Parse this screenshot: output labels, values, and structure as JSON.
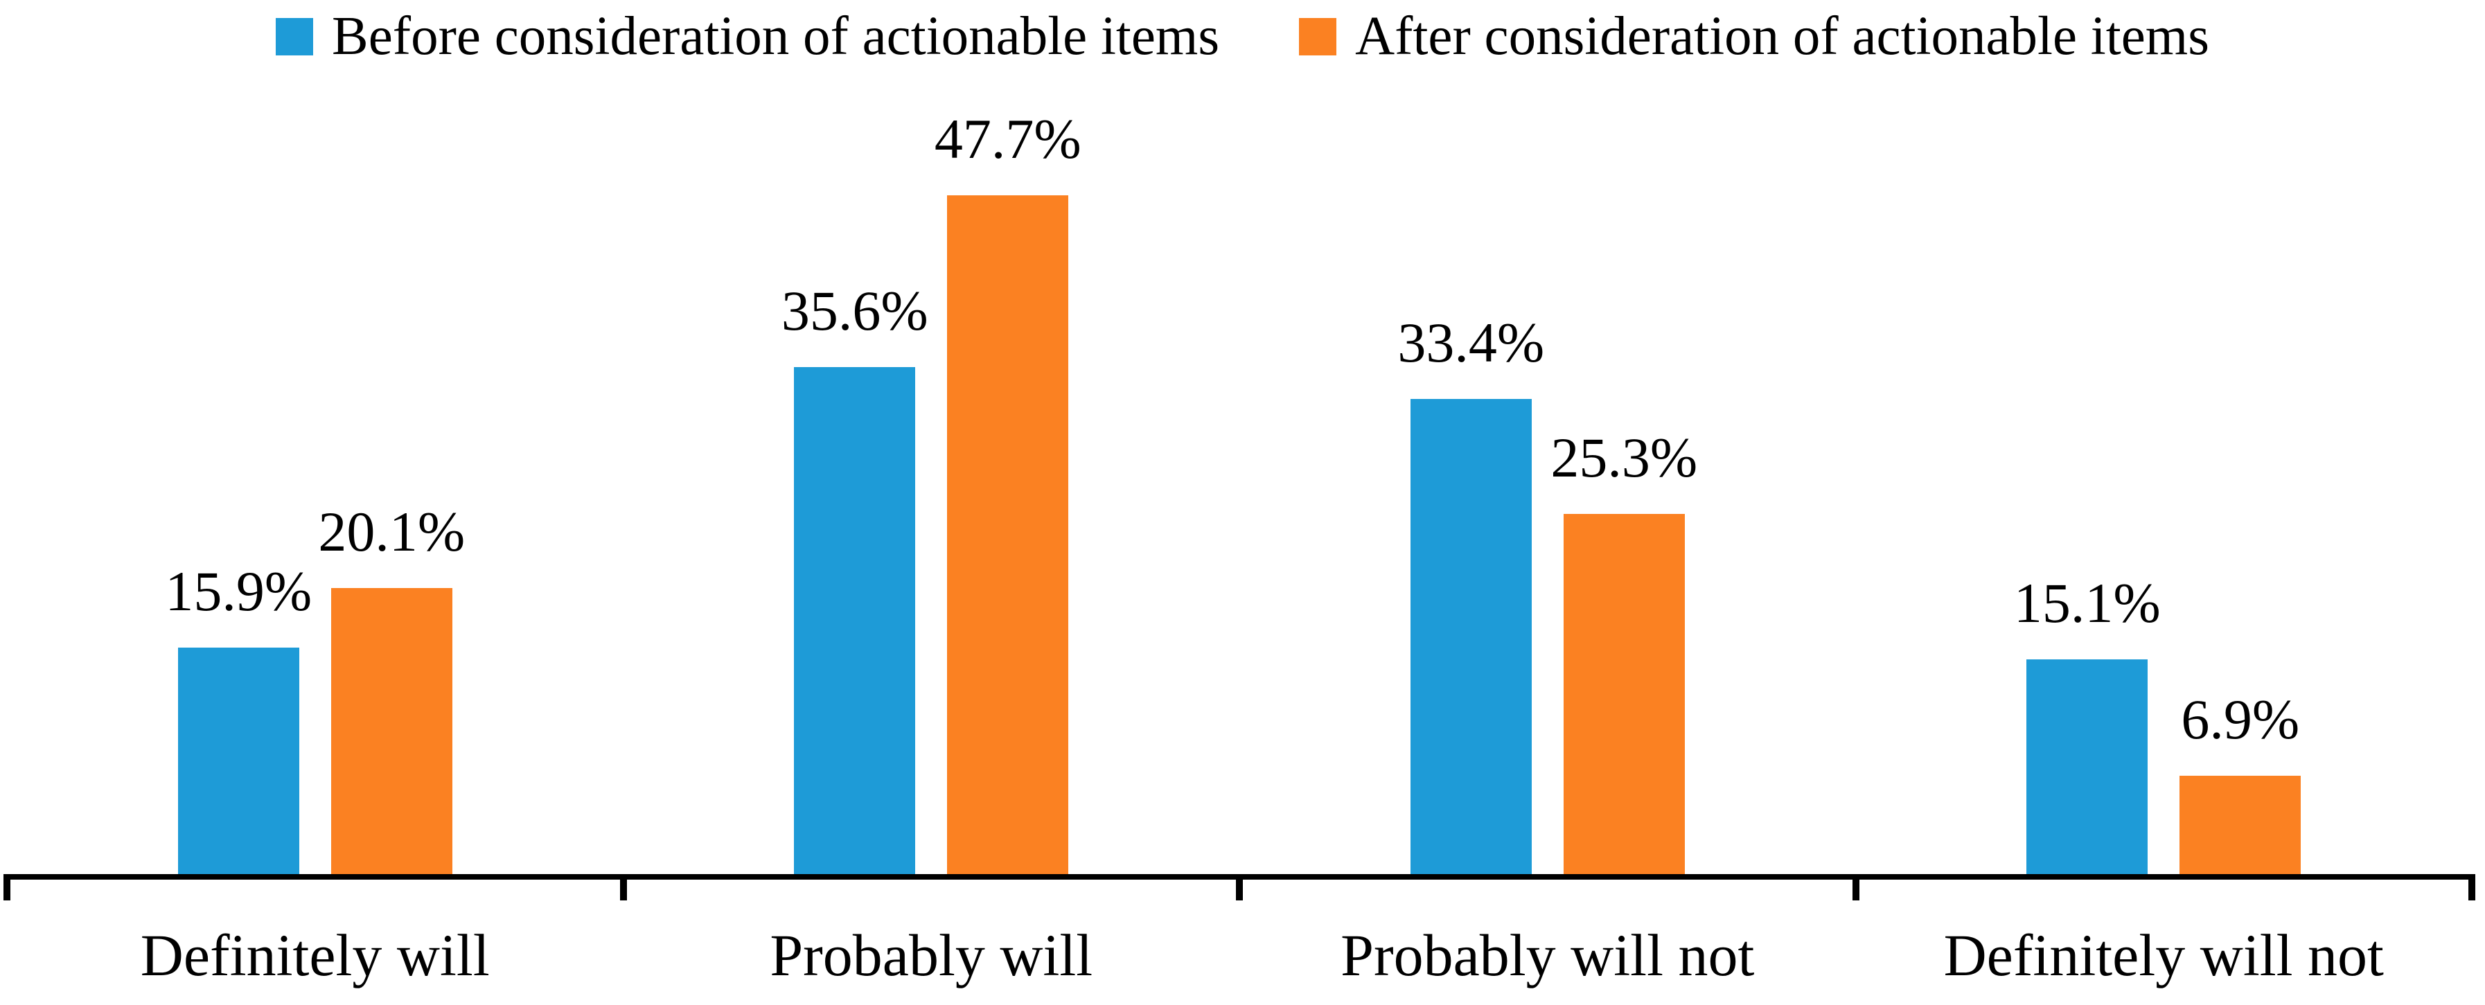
{
  "page": {
    "background": "#ffffff",
    "axis_color": "#000000",
    "text_color": "#000000"
  },
  "legend": {
    "position": "top",
    "items": [
      {
        "label": "Before consideration of actionable items",
        "color": "#1E9BD7"
      },
      {
        "label": "After consideration of actionable items",
        "color": "#FB8122"
      }
    ]
  },
  "chart_data": {
    "type": "bar",
    "title": "",
    "xlabel": "",
    "ylabel": "",
    "categories": [
      "Definitely will",
      "Probably will",
      "Probably will not",
      "Definitely will not"
    ],
    "series": [
      {
        "name": "Before consideration of actionable items",
        "color": "#1E9BD7",
        "values": [
          15.9,
          35.6,
          33.4,
          15.1
        ],
        "labels": [
          "15.9%",
          "35.6%",
          "33.4%",
          "15.1%"
        ]
      },
      {
        "name": "After consideration of actionable items",
        "color": "#FB8122",
        "values": [
          20.1,
          47.7,
          25.3,
          6.9
        ],
        "labels": [
          "20.1%",
          "47.7%",
          "25.3%",
          "6.9%"
        ]
      }
    ],
    "value_suffix": "%",
    "ylim": [
      0,
      50
    ],
    "y_axis_visible": false,
    "grid": false,
    "data_labels": "above-bars",
    "legend_position": "top"
  }
}
